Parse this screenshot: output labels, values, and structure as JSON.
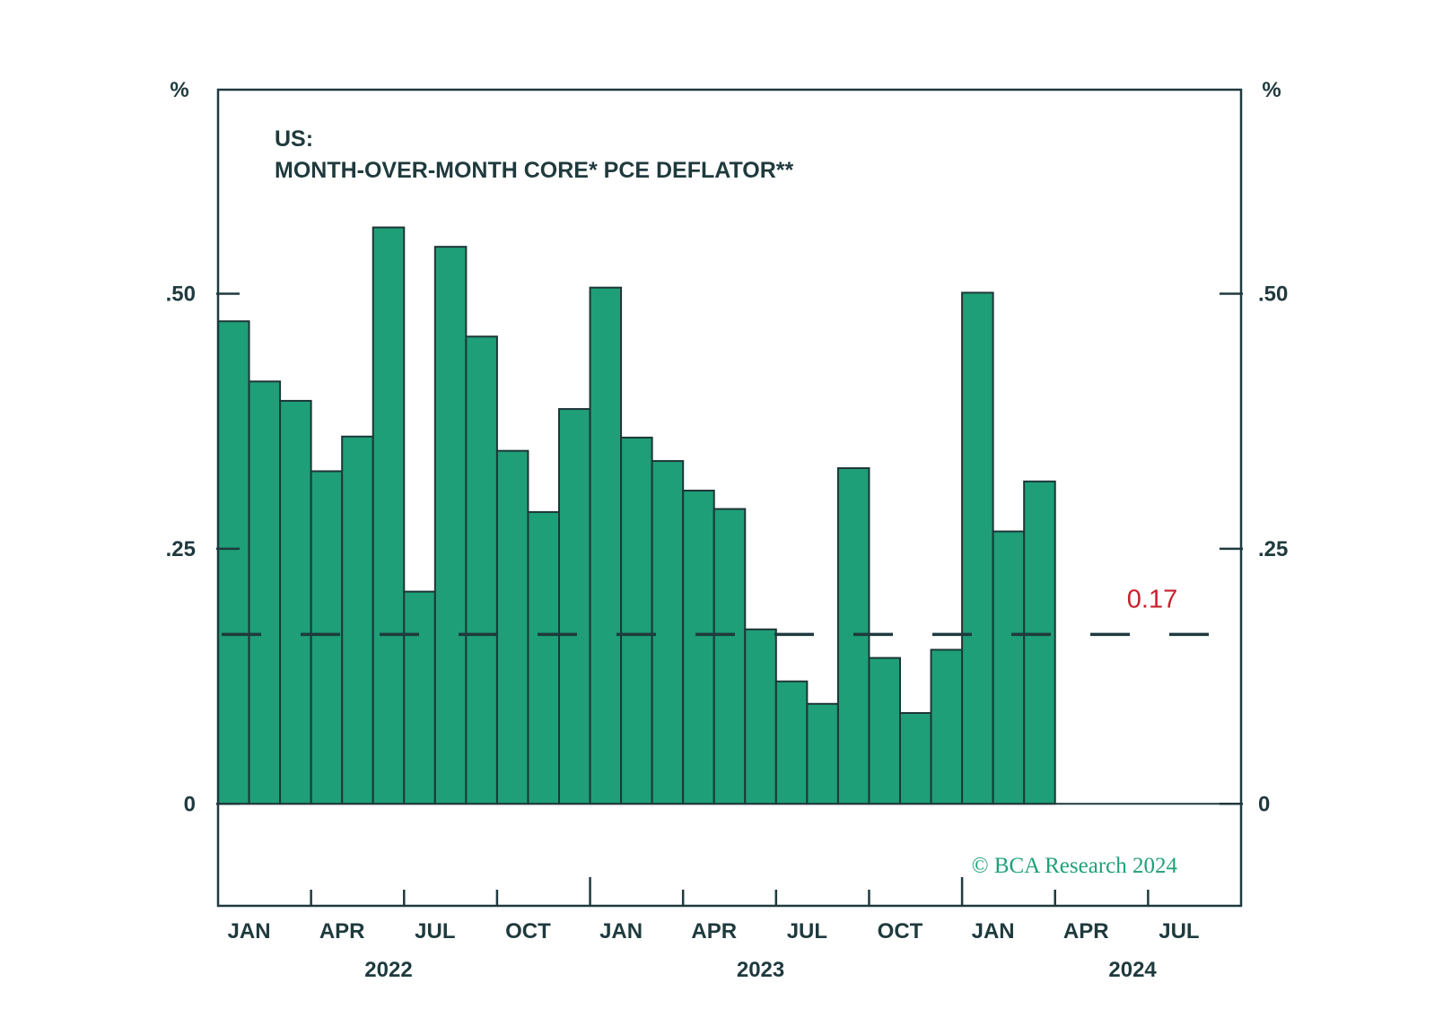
{
  "chart_data": {
    "type": "bar",
    "title_line1": "US:",
    "title_line2": "MONTH-OVER-MONTH CORE* PCE DEFLATOR**",
    "left_unit": "%",
    "right_unit": "%",
    "ylim": [
      -0.1,
      0.7
    ],
    "yticks": [
      {
        "value": 0.5,
        "label": ".50"
      },
      {
        "value": 0.25,
        "label": ".25"
      },
      {
        "value": 0,
        "label": "0"
      }
    ],
    "x_month_start": 0,
    "x_month_end": 33,
    "categories": [
      "2022-01",
      "2022-02",
      "2022-03",
      "2022-04",
      "2022-05",
      "2022-06",
      "2022-07",
      "2022-08",
      "2022-09",
      "2022-10",
      "2022-11",
      "2022-12",
      "2023-01",
      "2023-02",
      "2023-03",
      "2023-04",
      "2023-05",
      "2023-06",
      "2023-07",
      "2023-08",
      "2023-09",
      "2023-10",
      "2023-11",
      "2023-12",
      "2024-01",
      "2024-02",
      "2024-03"
    ],
    "values": [
      0.473,
      0.414,
      0.395,
      0.326,
      0.36,
      0.565,
      0.208,
      0.546,
      0.458,
      0.346,
      0.286,
      0.387,
      0.506,
      0.359,
      0.336,
      0.307,
      0.289,
      0.171,
      0.12,
      0.098,
      0.329,
      0.143,
      0.089,
      0.151,
      0.501,
      0.267,
      0.316
    ],
    "xticks": [
      {
        "month": 0,
        "label": "JAN",
        "major": false
      },
      {
        "month": 3,
        "label": "APR",
        "major": false
      },
      {
        "month": 6,
        "label": "JUL",
        "major": false
      },
      {
        "month": 9,
        "label": "OCT",
        "major": false
      },
      {
        "month": 12,
        "label": "JAN",
        "major": true
      },
      {
        "month": 15,
        "label": "APR",
        "major": false
      },
      {
        "month": 18,
        "label": "JUL",
        "major": false
      },
      {
        "month": 21,
        "label": "OCT",
        "major": false
      },
      {
        "month": 24,
        "label": "JAN",
        "major": true
      },
      {
        "month": 27,
        "label": "APR",
        "major": false
      },
      {
        "month": 30,
        "label": "JUL",
        "major": false
      }
    ],
    "years": [
      {
        "label": "2022",
        "center_month": 5.5
      },
      {
        "label": "2023",
        "center_month": 17.5
      },
      {
        "label": "2024",
        "center_month": 29.5
      }
    ],
    "reference_line": {
      "value": 0.166,
      "label": "0.17",
      "color": "#c8202f",
      "style": "dashed"
    },
    "bar_color": "#1e9f77",
    "text_color": "#1f3a3d",
    "copyright": "© BCA Research 2024",
    "copyright_color": "#1fa07a"
  }
}
